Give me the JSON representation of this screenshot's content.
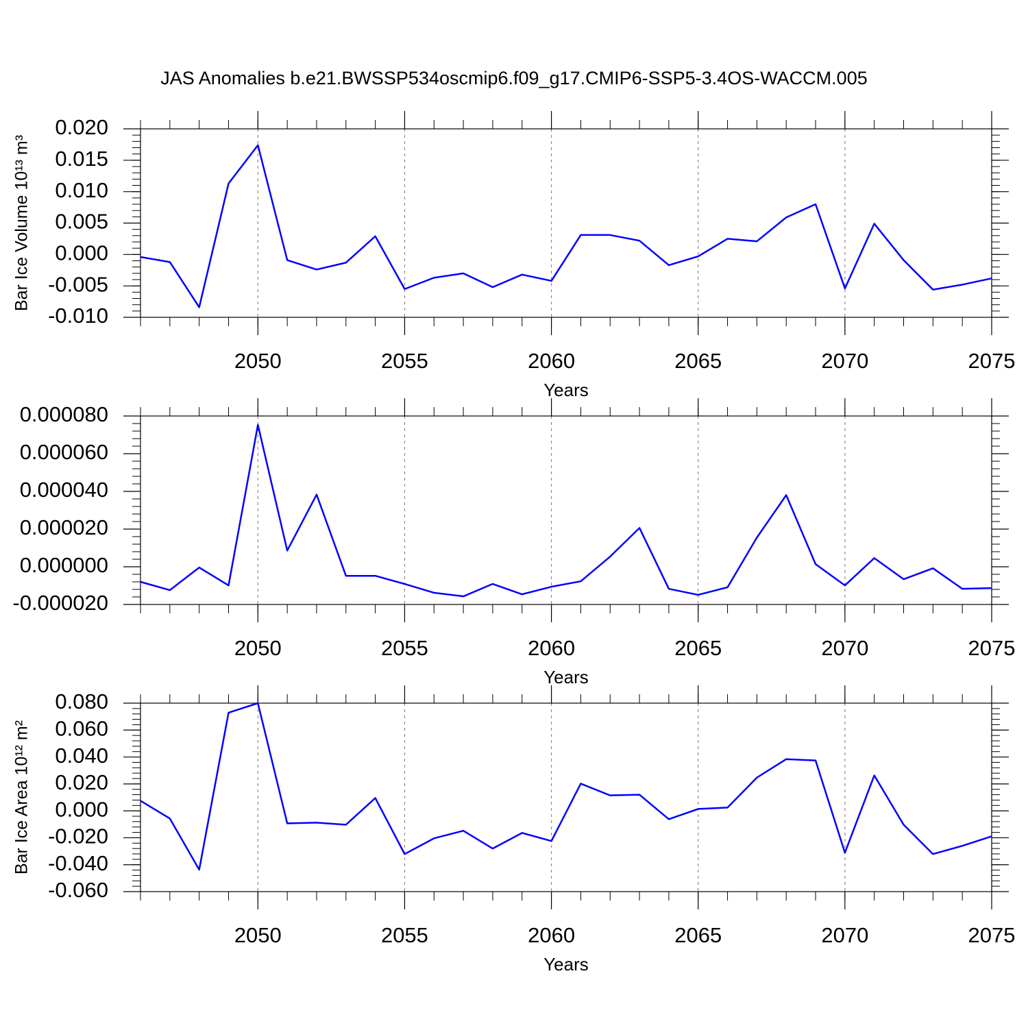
{
  "chart_data": [
    {
      "type": "line",
      "title": "JAS Anomalies b.e21.BWSSP534oscmip6.f09_g17.CMIP6-SSP5-3.4OS-WACCM.005",
      "ylabel": "Bar Ice Volume 10¹³ m³",
      "xlabel": "Years",
      "color": "#0000ff",
      "xgrid": true,
      "x": [
        2046,
        2047,
        2048,
        2049,
        2050,
        2051,
        2052,
        2053,
        2054,
        2055,
        2056,
        2057,
        2058,
        2059,
        2060,
        2061,
        2062,
        2063,
        2064,
        2065,
        2066,
        2067,
        2068,
        2069,
        2070,
        2071,
        2072,
        2073,
        2074,
        2075
      ],
      "values": [
        -0.0004,
        -0.0012,
        -0.0084,
        0.0113,
        0.0174,
        -0.0009,
        -0.0024,
        -0.0013,
        0.0029,
        -0.0055,
        -0.0037,
        -0.003,
        -0.0052,
        -0.0032,
        -0.0042,
        0.0031,
        0.0031,
        0.0022,
        -0.0017,
        -0.0003,
        0.0025,
        0.0021,
        0.0059,
        0.008,
        -0.0054,
        0.0049,
        -0.0009,
        -0.0056,
        -0.0048,
        -0.0038
      ],
      "xlim": [
        2046,
        2075
      ],
      "xticks": [
        2050,
        2055,
        2060,
        2065,
        2070,
        2075
      ],
      "ylim": [
        -0.01,
        0.02
      ],
      "yticks": [
        {
          "value": -0.01,
          "label": "-0.010"
        },
        {
          "value": -0.005,
          "label": "-0.005"
        },
        {
          "value": 0,
          "label": "0.000"
        },
        {
          "value": 0.005,
          "label": "0.005"
        },
        {
          "value": 0.01,
          "label": "0.010"
        },
        {
          "value": 0.015,
          "label": "0.015"
        },
        {
          "value": 0.02,
          "label": "0.020"
        }
      ]
    },
    {
      "type": "line",
      "xlabel": "Years",
      "color": "#0000ff",
      "xgrid": true,
      "x": [
        2046,
        2047,
        2048,
        2049,
        2050,
        2051,
        2052,
        2053,
        2054,
        2055,
        2056,
        2057,
        2058,
        2059,
        2060,
        2061,
        2062,
        2063,
        2064,
        2065,
        2066,
        2067,
        2068,
        2069,
        2070,
        2071,
        2072,
        2073,
        2074,
        2075
      ],
      "values": [
        -8e-06,
        -1.24e-05,
        -4e-07,
        -9.9e-06,
        7.53e-05,
        8.6e-06,
        3.83e-05,
        -4.8e-06,
        -4.8e-06,
        -9.1e-06,
        -1.38e-05,
        -1.57e-05,
        -9.1e-06,
        -1.46e-05,
        -1.06e-05,
        -7.7e-06,
        5.4e-06,
        2.06e-05,
        -1.17e-05,
        -1.49e-05,
        -1.09e-05,
        1.55e-05,
        3.8e-05,
        1.4e-06,
        -9.9e-06,
        4.6e-06,
        -6.6e-06,
        -8e-07,
        -1.17e-05,
        -1.13e-05
      ],
      "xlim": [
        2046,
        2075
      ],
      "xticks": [
        2050,
        2055,
        2060,
        2065,
        2070,
        2075
      ],
      "ylim": [
        -2e-05,
        8e-05
      ],
      "yticks": [
        {
          "value": -2e-05,
          "label": "-0.000020"
        },
        {
          "value": 0,
          "label": "0.000000"
        },
        {
          "value": 2e-05,
          "label": "0.000020"
        },
        {
          "value": 4e-05,
          "label": "0.000040"
        },
        {
          "value": 6e-05,
          "label": "0.000060"
        },
        {
          "value": 8e-05,
          "label": "0.000080"
        }
      ]
    },
    {
      "type": "line",
      "ylabel": "Bar Ice Area 10¹² m²",
      "xlabel": "Years",
      "color": "#0000ff",
      "xgrid": true,
      "x": [
        2046,
        2047,
        2048,
        2049,
        2050,
        2051,
        2052,
        2053,
        2054,
        2055,
        2056,
        2057,
        2058,
        2059,
        2060,
        2061,
        2062,
        2063,
        2064,
        2065,
        2066,
        2067,
        2068,
        2069,
        2070,
        2071,
        2072,
        2073,
        2074,
        2075
      ],
      "values": [
        0.0075,
        -0.0057,
        -0.0437,
        0.0729,
        0.08,
        -0.0093,
        -0.0088,
        -0.0103,
        0.0095,
        -0.0321,
        -0.0204,
        -0.0148,
        -0.028,
        -0.0164,
        -0.0224,
        0.0202,
        0.0115,
        0.012,
        -0.0062,
        0.0014,
        0.0024,
        0.0247,
        0.0384,
        0.0374,
        -0.0311,
        0.0263,
        -0.0103,
        -0.0321,
        -0.026,
        -0.0189
      ],
      "xlim": [
        2046,
        2075
      ],
      "xticks": [
        2050,
        2055,
        2060,
        2065,
        2070,
        2075
      ],
      "ylim": [
        -0.06,
        0.08
      ],
      "yticks": [
        {
          "value": -0.06,
          "label": "-0.060"
        },
        {
          "value": -0.04,
          "label": "-0.040"
        },
        {
          "value": -0.02,
          "label": "-0.020"
        },
        {
          "value": 0,
          "label": "0.000"
        },
        {
          "value": 0.02,
          "label": "0.020"
        },
        {
          "value": 0.04,
          "label": "0.040"
        },
        {
          "value": 0.06,
          "label": "0.060"
        },
        {
          "value": 0.08,
          "label": "0.080"
        }
      ]
    }
  ]
}
